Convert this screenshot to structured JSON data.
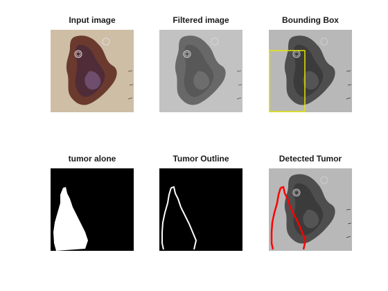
{
  "panels": [
    {
      "id": "input",
      "title": "Input image"
    },
    {
      "id": "filtered",
      "title": "Filtered image"
    },
    {
      "id": "bounding",
      "title": "Bounding Box"
    },
    {
      "id": "alone",
      "title": "tumor alone"
    },
    {
      "id": "outline",
      "title": "Tumor Outline"
    },
    {
      "id": "detected",
      "title": "Detected Tumor"
    }
  ],
  "colors": {
    "bbox": "#e6e600",
    "detected_outline": "#ff0000",
    "mask_fg": "#ffffff",
    "mask_bg": "#000000"
  }
}
